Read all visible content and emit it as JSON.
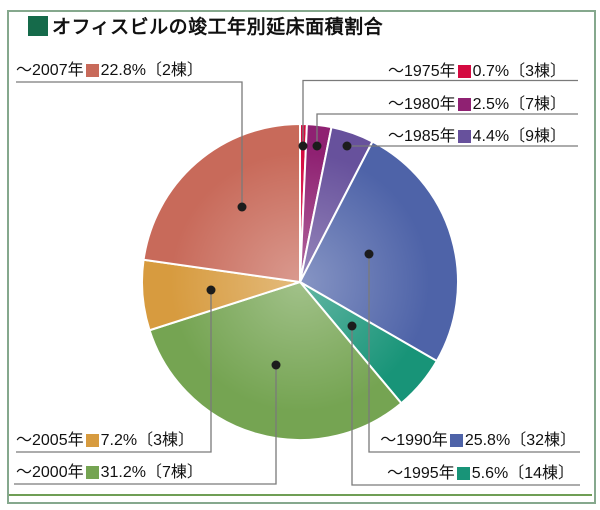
{
  "title": {
    "text": "オフィスビルの竣工年別延床面積割合"
  },
  "styles": {
    "title_bullet": "#156a4a",
    "frame_border": "#85a88d",
    "bottom_rule": "#6f9e55",
    "leader_line": "#7a7a7a",
    "callout_dot": "#1c1c1c",
    "slice_separator": "#ffffff"
  },
  "chart_data": {
    "type": "pie",
    "title": "オフィスビルの竣工年別延床面積割合",
    "start_angle_deg": 0,
    "clockwise": true,
    "value_unit": "%",
    "slices": [
      {
        "id": "y1975",
        "year": "～1975年",
        "pct": 0.7,
        "count": 3,
        "pct_label": "0.7%",
        "count_label": "〔3棟〕",
        "color": "#d40a40"
      },
      {
        "id": "y1980",
        "year": "～1980年",
        "pct": 2.5,
        "count": 7,
        "pct_label": "2.5%",
        "count_label": "〔7棟〕",
        "color": "#8f2172"
      },
      {
        "id": "y1985",
        "year": "～1985年",
        "pct": 4.4,
        "count": 9,
        "pct_label": "4.4%",
        "count_label": "〔9棟〕",
        "color": "#67519c"
      },
      {
        "id": "y1990",
        "year": "～1990年",
        "pct": 25.8,
        "count": 32,
        "pct_label": "25.8%",
        "count_label": "〔32棟〕",
        "color": "#4e63a8"
      },
      {
        "id": "y1995",
        "year": "～1995年",
        "pct": 5.6,
        "count": 14,
        "pct_label": "5.6%",
        "count_label": "〔14棟〕",
        "color": "#189478"
      },
      {
        "id": "y2000",
        "year": "～2000年",
        "pct": 31.2,
        "count": 7,
        "pct_label": "31.2%",
        "count_label": "〔7棟〕",
        "color": "#75a452"
      },
      {
        "id": "y2005",
        "year": "～2005年",
        "pct": 7.2,
        "count": 3,
        "pct_label": "7.2%",
        "count_label": "〔3棟〕",
        "color": "#d79b3f"
      },
      {
        "id": "y2007",
        "year": "～2007年",
        "pct": 22.8,
        "count": 2,
        "pct_label": "22.8%",
        "count_label": "〔2棟〕",
        "color": "#c86a5a"
      }
    ]
  }
}
